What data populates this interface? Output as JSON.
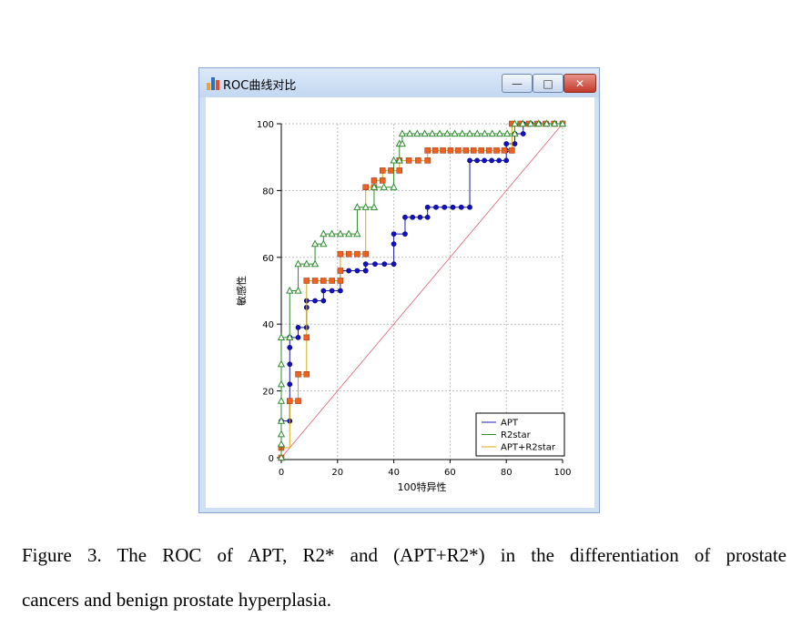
{
  "window": {
    "title": "ROC曲线对比",
    "min_glyph": "—",
    "max_glyph": "□",
    "close_glyph": "✕",
    "icon_colors": [
      "#f0a030",
      "#2e6fc0",
      "#e05030"
    ]
  },
  "chart_data": {
    "type": "line",
    "xlabel": "100特异性",
    "ylabel": "敏感性",
    "xlim": [
      0,
      100
    ],
    "ylim": [
      0,
      100
    ],
    "xticks": [
      0,
      20,
      40,
      60,
      80,
      100
    ],
    "yticks": [
      0,
      20,
      40,
      60,
      80,
      100
    ],
    "grid": true,
    "legend_position": "bottom-right",
    "reference_line": {
      "x": [
        0,
        100
      ],
      "y": [
        0,
        100
      ],
      "color": "#e06070"
    },
    "series": [
      {
        "name": "APT",
        "color": "#1a1aa0",
        "marker": "circle",
        "x": [
          0,
          0,
          0,
          3,
          3,
          3,
          3,
          3,
          3,
          3,
          3,
          6,
          6,
          9,
          9,
          9,
          15,
          15,
          21,
          21,
          21,
          21,
          30,
          30,
          30,
          40,
          40,
          40,
          44,
          44,
          52,
          52,
          67,
          67,
          80,
          80,
          80,
          83,
          83,
          86,
          86,
          100
        ],
        "y": [
          0,
          3,
          11,
          11,
          17,
          22,
          28,
          33,
          36,
          36,
          36,
          36,
          39,
          39,
          45,
          47,
          47,
          50,
          50,
          53,
          56,
          56,
          56,
          56,
          58,
          58,
          64,
          67,
          67,
          72,
          72,
          75,
          75,
          89,
          89,
          92,
          94,
          94,
          97,
          97,
          100,
          100
        ]
      },
      {
        "name": "R2star",
        "color": "#2e8b2e",
        "marker": "triangle",
        "x": [
          0,
          0,
          0,
          0,
          0,
          0,
          0,
          0,
          3,
          3,
          6,
          6,
          12,
          12,
          15,
          15,
          27,
          27,
          33,
          33,
          40,
          40,
          42,
          42,
          43,
          43,
          83,
          83,
          100
        ],
        "y": [
          0,
          4,
          7,
          11,
          17,
          22,
          28,
          36,
          36,
          50,
          50,
          58,
          58,
          64,
          64,
          67,
          67,
          75,
          75,
          81,
          81,
          89,
          89,
          94,
          94,
          97,
          97,
          100,
          100
        ]
      },
      {
        "name": "APT+R2star",
        "color": "#d4aa10",
        "marker": "square",
        "x": [
          0,
          0,
          3,
          6,
          6,
          9,
          9,
          9,
          21,
          21,
          21,
          30,
          30,
          33,
          33,
          36,
          36,
          42,
          42,
          52,
          52,
          82,
          82,
          100
        ],
        "y": [
          0,
          3,
          17,
          17,
          25,
          25,
          36,
          53,
          53,
          56,
          61,
          61,
          81,
          81,
          83,
          83,
          86,
          86,
          89,
          89,
          92,
          92,
          100,
          100
        ]
      }
    ]
  },
  "figure_caption": {
    "line1": "Figure 3. The ROC of APT, R2* and (APT+R2*) in the differentiation of prostate",
    "line2": "cancers and benign prostate hyperplasia."
  }
}
